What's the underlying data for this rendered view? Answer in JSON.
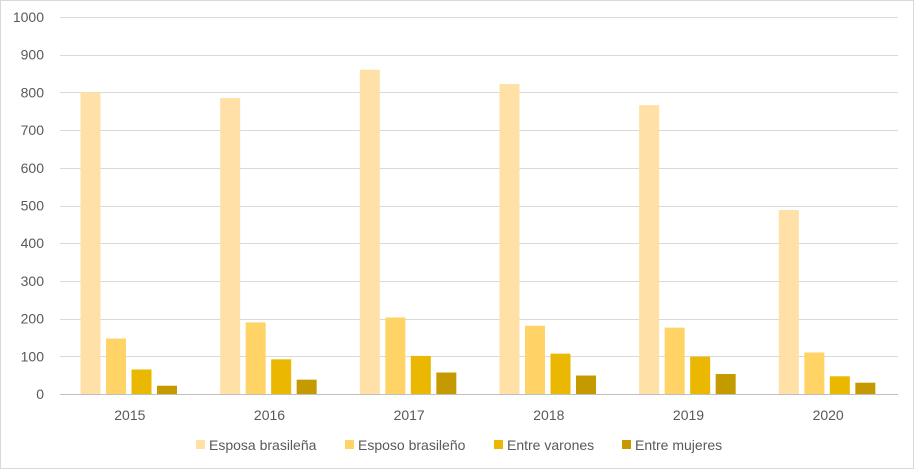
{
  "chart_data": {
    "type": "bar",
    "categories": [
      "2015",
      "2016",
      "2017",
      "2018",
      "2019",
      "2020"
    ],
    "series": [
      {
        "name": "Esposa brasileña",
        "color": "#ffe0a6",
        "values": [
          800,
          785,
          860,
          822,
          766,
          488
        ]
      },
      {
        "name": "Esposo brasileño",
        "color": "#ffd366",
        "values": [
          147,
          190,
          203,
          181,
          176,
          110
        ]
      },
      {
        "name": "Entre varones",
        "color": "#eab800",
        "values": [
          65,
          92,
          101,
          107,
          99,
          47
        ]
      },
      {
        "name": "Entre mujeres",
        "color": "#c49a00",
        "values": [
          22,
          38,
          57,
          49,
          53,
          30
        ]
      }
    ],
    "ylim": [
      0,
      1000
    ],
    "yticks": [
      0,
      100,
      200,
      300,
      400,
      500,
      600,
      700,
      800,
      900,
      1000
    ],
    "grid": true,
    "legend_position": "bottom"
  }
}
